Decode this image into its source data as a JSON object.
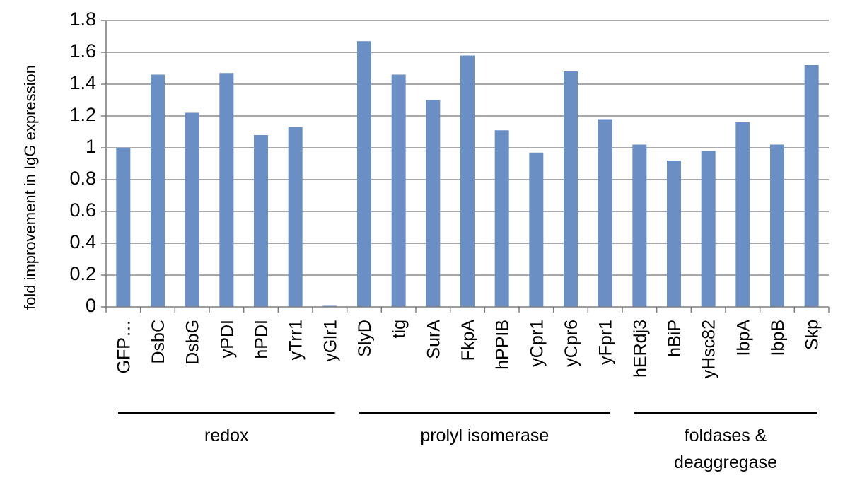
{
  "chart_data": {
    "type": "bar",
    "ylabel": "fold improvement in IgG expression",
    "xlabel": "",
    "ylim": [
      0,
      1.8
    ],
    "yticks": [
      "0",
      "0.2",
      "0.4",
      "0.6",
      "0.8",
      "1",
      "1.2",
      "1.4",
      "1.6",
      "1.8"
    ],
    "grid": "horizontal",
    "bar_color": "#6a8fc5",
    "categories": [
      "GFP…",
      "DsbC",
      "DsbG",
      "yPDI",
      "hPDI",
      "yTrr1",
      "yGlr1",
      "SlyD",
      "tig",
      "SurA",
      "FkpA",
      "hPPIB",
      "yCpr1",
      "yCpr6",
      "yFpr1",
      "hERdj3",
      "hBiP",
      "yHsc82",
      "IbpA",
      "IbpB",
      "Skp"
    ],
    "values": [
      1.0,
      1.46,
      1.22,
      1.47,
      1.08,
      1.13,
      0.005,
      1.67,
      1.46,
      1.3,
      1.58,
      1.11,
      0.97,
      1.48,
      1.18,
      1.02,
      0.92,
      0.98,
      1.16,
      1.02,
      1.52
    ],
    "groups": [
      {
        "label_lines": [
          "redox"
        ],
        "start": 0,
        "end": 6
      },
      {
        "label_lines": [
          "prolyl isomerase"
        ],
        "start": 7,
        "end": 14
      },
      {
        "label_lines": [
          "foldases &",
          "deaggregase"
        ],
        "start": 15,
        "end": 20
      }
    ]
  }
}
